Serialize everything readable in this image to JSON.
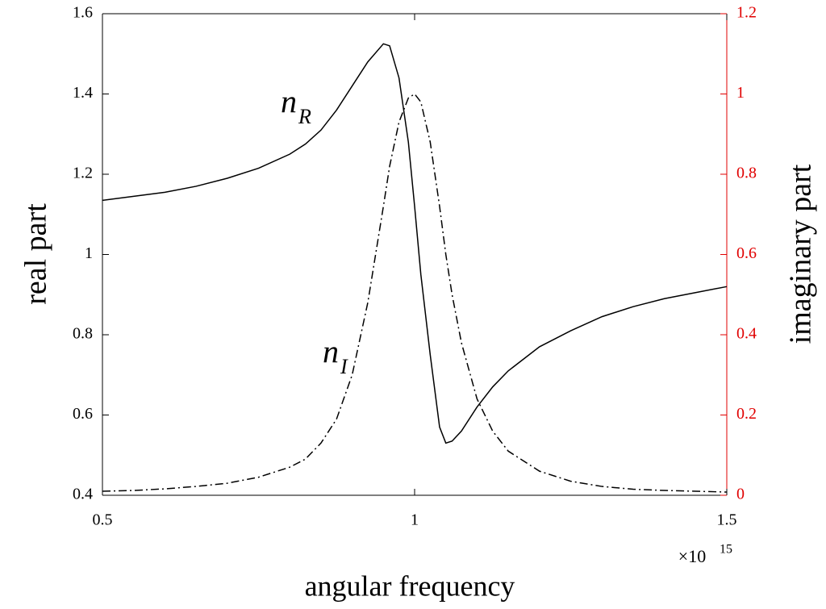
{
  "chart_data": {
    "type": "line",
    "xlabel": "angular frequency",
    "ylabel": "real part",
    "y2label": "imaginary part",
    "x_multiplier": {
      "base": "×10",
      "power": "15"
    },
    "x": [
      0.5,
      0.55,
      0.6,
      0.65,
      0.7,
      0.75,
      0.8,
      0.825,
      0.85,
      0.875,
      0.9,
      0.925,
      0.95,
      0.96,
      0.975,
      0.99,
      1.0,
      1.01,
      1.025,
      1.04,
      1.05,
      1.06,
      1.075,
      1.1,
      1.125,
      1.15,
      1.2,
      1.25,
      1.3,
      1.35,
      1.4,
      1.45,
      1.5
    ],
    "series": [
      {
        "name": "n_R",
        "color": "#000000",
        "style": "solid",
        "axis": "y",
        "values": [
          1.135,
          1.145,
          1.155,
          1.17,
          1.19,
          1.215,
          1.25,
          1.275,
          1.31,
          1.36,
          1.42,
          1.48,
          1.525,
          1.52,
          1.44,
          1.28,
          1.12,
          0.95,
          0.75,
          0.57,
          0.53,
          0.535,
          0.56,
          0.62,
          0.67,
          0.71,
          0.77,
          0.81,
          0.845,
          0.87,
          0.89,
          0.905,
          0.92
        ]
      },
      {
        "name": "n_I",
        "color": "#000000",
        "style": "dashdot",
        "axis": "y2",
        "values": [
          0.01,
          0.012,
          0.016,
          0.022,
          0.03,
          0.045,
          0.07,
          0.09,
          0.13,
          0.19,
          0.3,
          0.48,
          0.72,
          0.82,
          0.93,
          0.99,
          1.0,
          0.98,
          0.88,
          0.72,
          0.6,
          0.5,
          0.38,
          0.24,
          0.16,
          0.11,
          0.06,
          0.035,
          0.022,
          0.015,
          0.012,
          0.01,
          0.008
        ]
      }
    ],
    "annotations": [
      {
        "text": "n",
        "sub": "R"
      },
      {
        "text": "n",
        "sub": "I"
      }
    ],
    "xlim": [
      0.5,
      1.5
    ],
    "xticks": [
      0.5,
      1,
      1.5
    ],
    "ylim": [
      0.4,
      1.6
    ],
    "yticks": [
      0.4,
      0.6,
      0.8,
      1,
      1.2,
      1.4,
      1.6
    ],
    "y2lim": [
      0,
      1.2
    ],
    "y2ticks": [
      0,
      0.2,
      0.4,
      0.6,
      0.8,
      1,
      1.2
    ],
    "y2_color": "#e00000"
  }
}
